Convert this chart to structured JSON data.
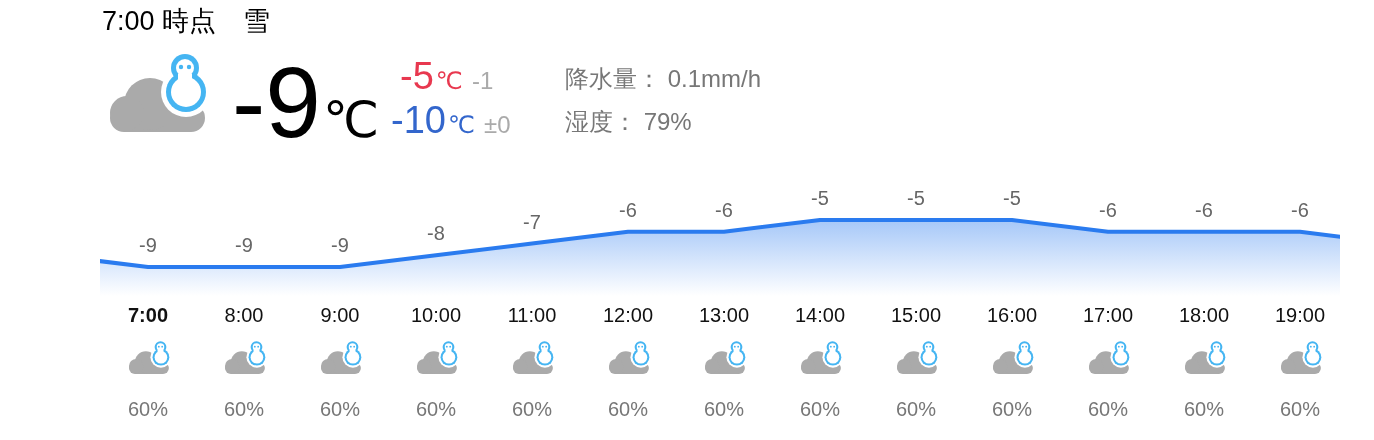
{
  "chart_data": [
    {
      "type": "other",
      "title": "7:00 時点　雪",
      "annotations": [
        "-9℃",
        "-5℃",
        "-1",
        "-10℃",
        "±0",
        "降水量： 0.1mm/h",
        "湿度： 79%"
      ]
    },
    {
      "type": "area",
      "categories": [
        null,
        "7:00",
        "8:00",
        "9:00",
        "10:00",
        "11:00",
        "12:00",
        "13:00",
        "14:00",
        "15:00",
        "16:00",
        "17:00",
        "18:00",
        "19:00",
        null
      ],
      "series": [
        {
          "type": "area",
          "color": "#2a7bef",
          "values": [
            -8,
            -9,
            -9,
            -9,
            -8,
            -7,
            -6,
            -6,
            -5,
            -5,
            -5,
            -6,
            -6,
            -6,
            -7
          ],
          "value_labels": [
            null,
            "-9",
            "-9",
            "-9",
            "-8",
            "-7",
            "-6",
            "-6",
            "-5",
            "-5",
            "-5",
            "-6",
            "-6",
            "-6",
            null
          ]
        }
      ],
      "annotations": [
        "60%",
        "60%",
        "60%",
        "60%",
        "60%",
        "60%",
        "60%",
        "60%",
        "60%",
        "60%",
        "60%",
        "60%",
        "60%"
      ]
    }
  ]
}
